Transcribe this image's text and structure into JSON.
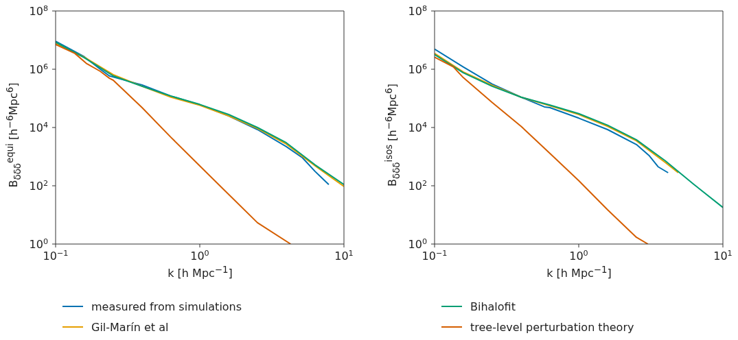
{
  "chart_data": [
    {
      "type": "line",
      "xlabel": "k [h Mpc$^{−1}$]",
      "ylabel": "B$_{δδδ}$$^{equi}$ [h$^{−6}$Mpc$^{6}$]",
      "log": "xy",
      "xlim": [
        0.1,
        10
      ],
      "ylim": [
        1,
        100000000
      ],
      "xticks": [
        {
          "value": 0.1,
          "label": "10$^{−1}$"
        },
        {
          "value": 1,
          "label": "10$^{0}$"
        },
        {
          "value": 10,
          "label": "10$^{1}$"
        }
      ],
      "yticks": [
        {
          "value": 1,
          "label": "10$^{0}$"
        },
        {
          "value": 100,
          "label": "10$^{2}$"
        },
        {
          "value": 10000,
          "label": "10$^{4}$"
        },
        {
          "value": 1000000,
          "label": "10$^{6}$"
        },
        {
          "value": 100000000,
          "label": "10$^{8}$"
        }
      ],
      "legend": "bottom",
      "marker": "none",
      "line_style": "solid",
      "series": [
        {
          "name": "measured from simulations",
          "color": "#0072b2",
          "x": [
            0.1,
            0.158,
            0.204,
            0.236,
            0.251,
            0.398,
            0.631,
            1,
            1.585,
            2.512,
            3.981,
            5.16,
            6.31,
            7.85
          ],
          "values": [
            9100000,
            2700000,
            1000000,
            590000,
            540000,
            290000,
            120000,
            60000,
            25000,
            8500,
            2200,
            910,
            310,
            110
          ]
        },
        {
          "name": "Gil-Marín et al",
          "color": "#e69f00",
          "x": [
            0.1,
            0.158,
            0.251,
            0.398,
            0.631,
            1,
            1.585,
            2.512,
            3.981,
            6.31,
            10
          ],
          "values": [
            7600000,
            2600000,
            650000,
            260000,
            110000,
            58000,
            25000,
            9300,
            2700,
            480,
            95
          ]
        },
        {
          "color": "#009e73",
          "x": [
            0.1,
            0.158,
            0.251,
            0.398,
            0.631,
            1,
            1.585,
            2.512,
            3.981,
            6.31,
            10
          ],
          "values": [
            8500000,
            2500000,
            590000,
            260000,
            120000,
            62000,
            28000,
            10000,
            3000,
            520,
            110
          ]
        },
        {
          "color": "#d55e00",
          "x": [
            0.1,
            0.136,
            0.163,
            0.204,
            0.236,
            0.251,
            0.398,
            0.631,
            1,
            1.585,
            2.512,
            4.27
          ],
          "values": [
            7100000,
            3500000,
            1600000,
            850000,
            490000,
            420000,
            48000,
            4600,
            480,
            51,
            5.4,
            1
          ]
        }
      ]
    },
    {
      "type": "line",
      "xlabel": "k [h Mpc$^{−1}$]",
      "ylabel": "B$_{δδδ}$$^{isos}$ [h$^{−6}$Mpc$^{6}$]",
      "log": "xy",
      "xlim": [
        0.1,
        10
      ],
      "ylim": [
        1,
        100000000
      ],
      "xticks": [
        {
          "value": 0.1,
          "label": "10$^{−1}$"
        },
        {
          "value": 1,
          "label": "10$^{0}$"
        },
        {
          "value": 10,
          "label": "10$^{1}$"
        }
      ],
      "yticks": [
        {
          "value": 1,
          "label": "10$^{0}$"
        },
        {
          "value": 100,
          "label": "10$^{2}$"
        },
        {
          "value": 10000,
          "label": "10$^{4}$"
        },
        {
          "value": 1000000,
          "label": "10$^{6}$"
        },
        {
          "value": 100000000,
          "label": "10$^{8}$"
        }
      ],
      "legend": "bottom",
      "marker": "none",
      "line_style": "solid",
      "series": [
        {
          "color": "#0072b2",
          "x": [
            0.1,
            0.158,
            0.251,
            0.398,
            0.578,
            0.631,
            1,
            1.585,
            2.512,
            3.07,
            3.55,
            4.17
          ],
          "values": [
            4900000,
            1200000,
            310000,
            110000,
            51000,
            48000,
            21000,
            8500,
            2600,
            1100,
            450,
            280
          ]
        },
        {
          "color": "#e69f00",
          "x": [
            0.1,
            0.158,
            0.251,
            0.398,
            0.631,
            1,
            1.585,
            2.512,
            3.981,
            4.9
          ],
          "values": [
            3500000,
            810000,
            280000,
            110000,
            56000,
            28000,
            11000,
            3500,
            630,
            280
          ]
        },
        {
          "name": "Bihalofit",
          "color": "#009e73",
          "x": [
            0.1,
            0.158,
            0.251,
            0.398,
            0.631,
            1,
            1.585,
            2.512,
            3.981,
            6.31,
            10
          ],
          "values": [
            3200000,
            760000,
            260000,
            110000,
            59000,
            30000,
            12000,
            3800,
            720,
            110,
            18
          ]
        },
        {
          "name": "tree-level perturbation theory",
          "color": "#d55e00",
          "x": [
            0.1,
            0.135,
            0.158,
            0.251,
            0.398,
            0.631,
            1,
            1.585,
            2.512,
            3.02
          ],
          "values": [
            2600000,
            1200000,
            520000,
            72000,
            11000,
            1300,
            150,
            15,
            1.7,
            1
          ]
        }
      ]
    }
  ]
}
